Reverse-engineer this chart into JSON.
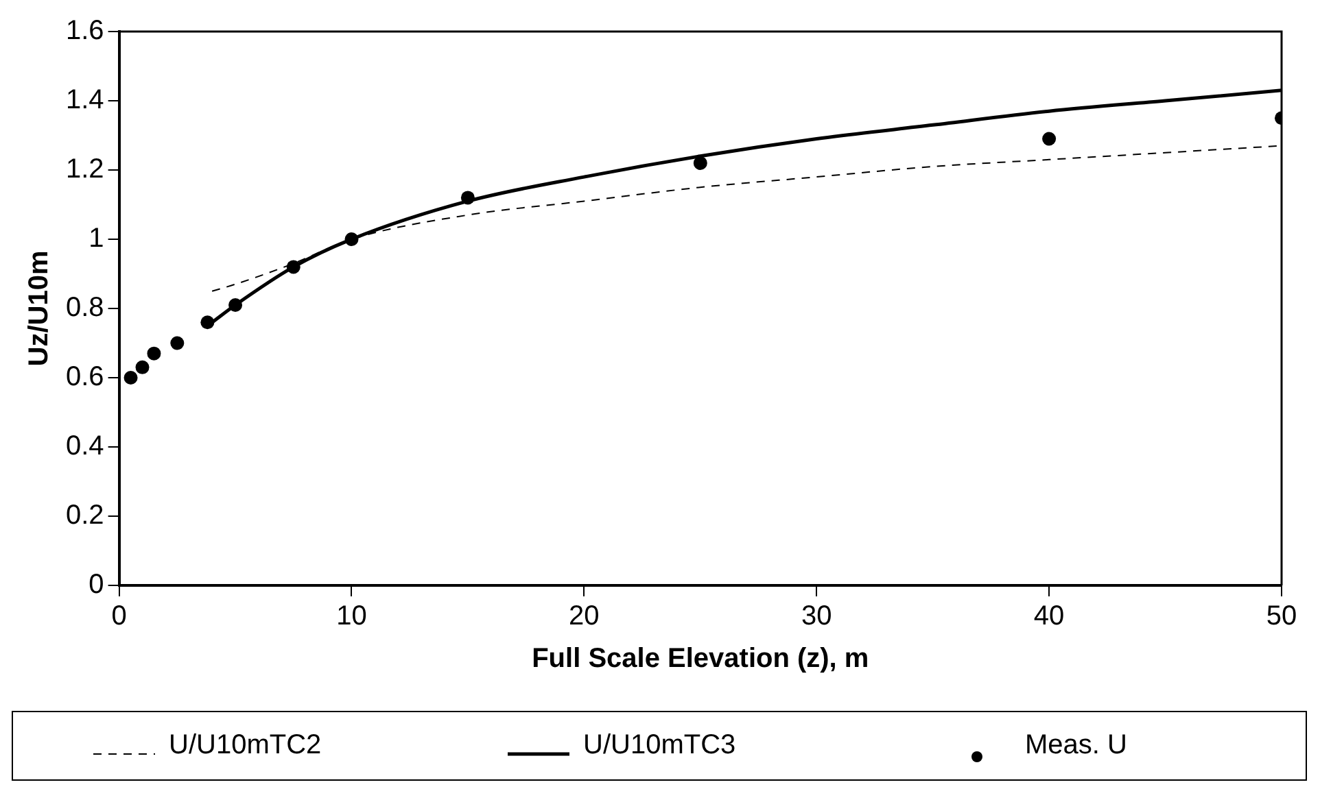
{
  "chart_data": {
    "type": "line",
    "xlabel": "Full Scale Elevation (z), m",
    "ylabel": "Uz/U10m",
    "xlim": [
      0,
      50
    ],
    "xticks": [
      0,
      10,
      20,
      30,
      40,
      50
    ],
    "ylim": [
      0,
      1.6
    ],
    "yticks": [
      0,
      0.2,
      0.4,
      0.6,
      0.8,
      1,
      1.2,
      1.4,
      1.6
    ],
    "grid": false,
    "legend": "bottom",
    "series": [
      {
        "name": "U/U10mTC2",
        "line_style": "dashed",
        "marker": "none",
        "color": "#000000",
        "x": [
          4,
          5,
          7.5,
          10,
          15,
          20,
          25,
          30,
          35,
          40,
          45,
          50
        ],
        "values": [
          0.85,
          0.87,
          0.93,
          1.0,
          1.07,
          1.11,
          1.15,
          1.18,
          1.21,
          1.23,
          1.25,
          1.27
        ]
      },
      {
        "name": "U/U10mTC3",
        "line_style": "solid",
        "marker": "none",
        "color": "#000000",
        "x": [
          4,
          5,
          7.5,
          10,
          15,
          20,
          25,
          30,
          35,
          40,
          45,
          50
        ],
        "values": [
          0.76,
          0.81,
          0.92,
          1.0,
          1.11,
          1.18,
          1.24,
          1.29,
          1.33,
          1.37,
          1.4,
          1.43
        ]
      },
      {
        "name": "Meas. U",
        "type": "scatter",
        "marker": "circle",
        "color": "#000000",
        "x": [
          0.5,
          1,
          1.5,
          2.5,
          3.8,
          5,
          7.5,
          10,
          15,
          25,
          40,
          50
        ],
        "values": [
          0.6,
          0.63,
          0.67,
          0.7,
          0.76,
          0.81,
          0.92,
          1.0,
          1.12,
          1.22,
          1.29,
          1.35
        ]
      }
    ]
  }
}
